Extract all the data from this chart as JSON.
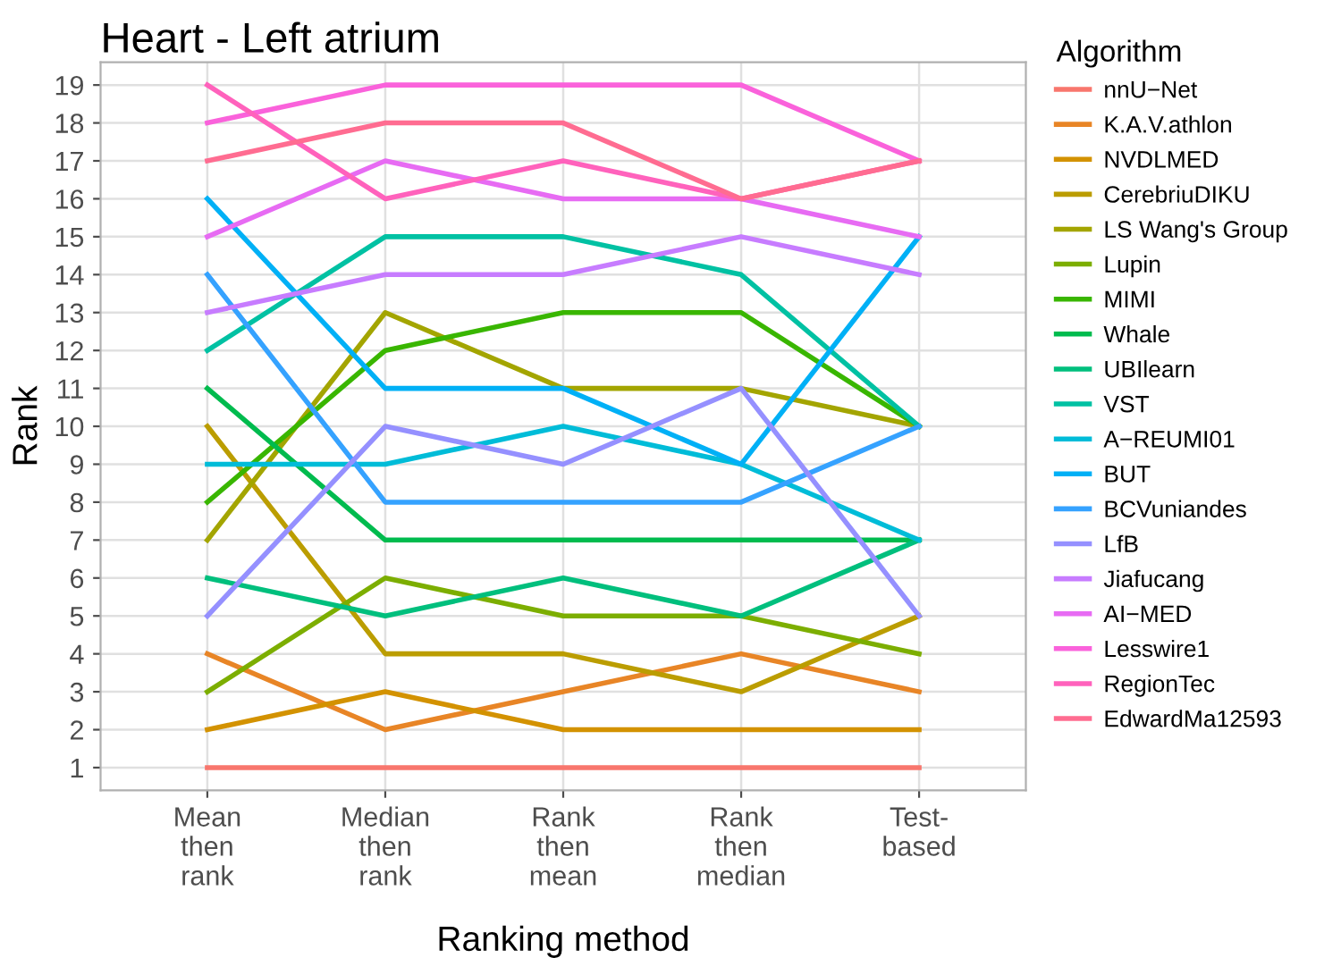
{
  "chart_data": {
    "type": "line",
    "title": "Heart - Left atrium",
    "xlabel": "Ranking method",
    "ylabel": "Rank",
    "legend_title": "Algorithm",
    "categories": [
      "Mean\nthen\nrank",
      "Median\nthen\nrank",
      "Rank\nthen\nmean",
      "Rank\nthen\nmedian",
      "Test-\nbased"
    ],
    "ylim": [
      0.4,
      19.6
    ],
    "yticks": [
      1,
      2,
      3,
      4,
      5,
      6,
      7,
      8,
      9,
      10,
      11,
      12,
      13,
      14,
      15,
      16,
      17,
      18,
      19
    ],
    "grid": true,
    "legend": "right",
    "marker": "none",
    "series": [
      {
        "name": "nnU−Net",
        "color": "#F8766D",
        "values": [
          1,
          1,
          1,
          1,
          1
        ]
      },
      {
        "name": "K.A.V.athlon",
        "color": "#E88526",
        "values": [
          4,
          2,
          3,
          4,
          3
        ]
      },
      {
        "name": "NVDLMED",
        "color": "#D39200",
        "values": [
          2,
          3,
          2,
          2,
          2
        ]
      },
      {
        "name": "CerebriuDIKU",
        "color": "#BB9D00",
        "values": [
          10,
          4,
          4,
          3,
          5
        ]
      },
      {
        "name": "LS Wang's Group",
        "color": "#A3A500",
        "values": [
          7,
          13,
          11,
          11,
          10
        ]
      },
      {
        "name": "Lupin",
        "color": "#7CAE00",
        "values": [
          3,
          6,
          5,
          5,
          4
        ]
      },
      {
        "name": "MIMI",
        "color": "#39B600",
        "values": [
          8,
          12,
          13,
          13,
          10
        ]
      },
      {
        "name": "Whale",
        "color": "#00BB4E",
        "values": [
          11,
          7,
          7,
          7,
          7
        ]
      },
      {
        "name": "UBIlearn",
        "color": "#00BF7D",
        "values": [
          6,
          5,
          6,
          5,
          7
        ]
      },
      {
        "name": "VST",
        "color": "#00C1A3",
        "values": [
          12,
          15,
          15,
          14,
          10
        ]
      },
      {
        "name": "A−REUMI01",
        "color": "#00BCD8",
        "values": [
          9,
          9,
          10,
          9,
          7
        ]
      },
      {
        "name": "BUT",
        "color": "#00B0F6",
        "values": [
          16,
          11,
          11,
          9,
          15
        ]
      },
      {
        "name": "BCVuniandes",
        "color": "#35A2FF",
        "values": [
          14,
          8,
          8,
          8,
          10
        ]
      },
      {
        "name": "LfB",
        "color": "#9590FF",
        "values": [
          5,
          10,
          9,
          11,
          5
        ]
      },
      {
        "name": "Jiafucang",
        "color": "#C77CFF",
        "values": [
          13,
          14,
          14,
          15,
          14
        ]
      },
      {
        "name": "AI−MED",
        "color": "#E76BF3",
        "values": [
          15,
          17,
          16,
          16,
          15
        ]
      },
      {
        "name": "Lesswire1",
        "color": "#FA62DB",
        "values": [
          18,
          19,
          19,
          19,
          17
        ]
      },
      {
        "name": "RegionTec",
        "color": "#FF62BC",
        "values": [
          19,
          16,
          17,
          16,
          17
        ]
      },
      {
        "name": "EdwardMa12593",
        "color": "#FF6C91",
        "values": [
          17,
          18,
          18,
          16,
          17
        ]
      }
    ]
  }
}
